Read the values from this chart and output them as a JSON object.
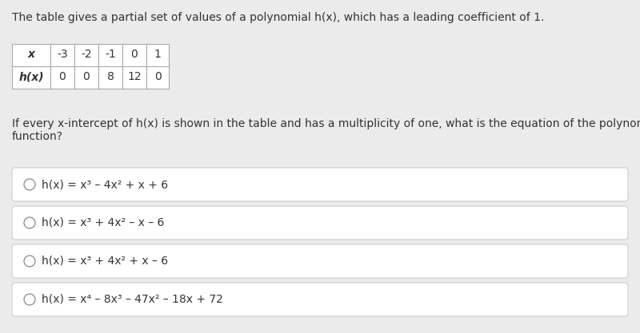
{
  "background_color": "#ebebeb",
  "intro_text": "The table gives a partial set of values of a polynomial h(x), which has a leading coefficient of 1.",
  "table_x_labels": [
    "x",
    "-3",
    "-2",
    "-1",
    "0",
    "1"
  ],
  "table_hx_values": [
    "h(x)",
    "0",
    "0",
    "8",
    "12",
    "0"
  ],
  "question_text": "If every x-intercept of h(x) is shown in the table and has a multiplicity of one, what is the equation of the polynomial\nfunction?",
  "options": [
    "h(x) = x³ – 4x² + x + 6",
    "h(x) = x³ + 4x² – x – 6",
    "h(x) = x³ + 4x² + x – 6",
    "h(x) = x⁴ – 8x³ – 47x² – 18x + 72"
  ],
  "option_box_color": "#ffffff",
  "option_border_color": "#cccccc",
  "text_color": "#333333",
  "circle_color": "#888888",
  "intro_fontsize": 10,
  "table_fontsize": 10,
  "question_fontsize": 10,
  "option_fontsize": 10
}
